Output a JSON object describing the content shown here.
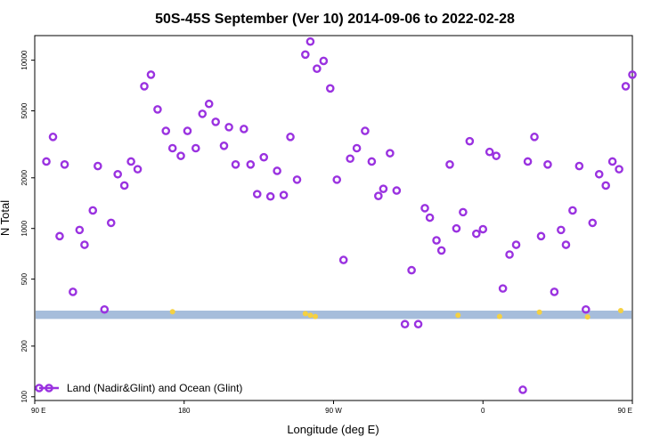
{
  "chart_data": {
    "type": "scatter",
    "title": "50S-45S September (Ver 10)   2014-09-06 to 2022-02-28",
    "xlabel": "Longitude (deg E)",
    "ylabel": "N Total",
    "y_scale": "log",
    "xlim": [
      90,
      450
    ],
    "ylim": [
      95,
      14000
    ],
    "x_ticks": [
      {
        "value": 90,
        "label": "90 E"
      },
      {
        "value": 180,
        "label": "180"
      },
      {
        "value": 270,
        "label": "90 W"
      },
      {
        "value": 360,
        "label": "0"
      },
      {
        "value": 450,
        "label": "90 E"
      },
      {
        "value": 540,
        "label": "180"
      }
    ],
    "y_ticks": [
      {
        "value": 100,
        "label": "100"
      },
      {
        "value": 200,
        "label": "200"
      },
      {
        "value": 500,
        "label": "500"
      },
      {
        "value": 1000,
        "label": "1000"
      },
      {
        "value": 2000,
        "label": "2000"
      },
      {
        "value": 5000,
        "label": "5000"
      },
      {
        "value": 10000,
        "label": "10000"
      }
    ],
    "legend": {
      "position": "bottom-left"
    },
    "series": [
      {
        "name": "Land (Nadir&Glint) and Ocean (Glint)",
        "color": "#9a32e0",
        "points": [
          [
            97,
            2500
          ],
          [
            101,
            3500
          ],
          [
            105,
            900
          ],
          [
            108,
            2400
          ],
          [
            113,
            420
          ],
          [
            117,
            980
          ],
          [
            120,
            800
          ],
          [
            125,
            1280
          ],
          [
            128,
            2350
          ],
          [
            132,
            330
          ],
          [
            136,
            1080
          ],
          [
            140,
            2100
          ],
          [
            144,
            1800
          ],
          [
            148,
            2500
          ],
          [
            152,
            2250
          ],
          [
            156,
            7000
          ],
          [
            160,
            8200
          ],
          [
            164,
            5100
          ],
          [
            169,
            3800
          ],
          [
            173,
            3000
          ],
          [
            178,
            2700
          ],
          [
            182,
            3800
          ],
          [
            187,
            3000
          ],
          [
            191,
            4800
          ],
          [
            195,
            5500
          ],
          [
            199,
            4300
          ],
          [
            204,
            3100
          ],
          [
            207,
            4000
          ],
          [
            211,
            2400
          ],
          [
            216,
            3900
          ],
          [
            220,
            2400
          ],
          [
            224,
            1600
          ],
          [
            228,
            2650
          ],
          [
            232,
            1550
          ],
          [
            236,
            2200
          ],
          [
            240,
            1580
          ],
          [
            244,
            3500
          ],
          [
            248,
            1950
          ],
          [
            253,
            10800
          ],
          [
            256,
            12900
          ],
          [
            260,
            8900
          ],
          [
            264,
            9900
          ],
          [
            268,
            6800
          ],
          [
            272,
            1950
          ],
          [
            276,
            650
          ],
          [
            280,
            2600
          ],
          [
            284,
            3000
          ],
          [
            289,
            3800
          ],
          [
            293,
            2500
          ],
          [
            297,
            1560
          ],
          [
            300,
            1720
          ],
          [
            304,
            2800
          ],
          [
            308,
            1680
          ],
          [
            313,
            270
          ],
          [
            317,
            565
          ],
          [
            321,
            270
          ],
          [
            325,
            1320
          ],
          [
            328,
            1160
          ],
          [
            332,
            850
          ],
          [
            335,
            740
          ],
          [
            340,
            2400
          ],
          [
            344,
            1000
          ],
          [
            348,
            1250
          ],
          [
            352,
            3300
          ],
          [
            356,
            930
          ],
          [
            360,
            990
          ],
          [
            364,
            2850
          ],
          [
            368,
            2700
          ],
          [
            372,
            440
          ],
          [
            376,
            700
          ],
          [
            380,
            800
          ],
          [
            384,
            110
          ],
          [
            387,
            2500
          ],
          [
            391,
            3500
          ],
          [
            395,
            900
          ],
          [
            399,
            2400
          ],
          [
            403,
            420
          ],
          [
            407,
            980
          ],
          [
            410,
            800
          ],
          [
            414,
            1280
          ],
          [
            418,
            2350
          ],
          [
            422,
            330
          ],
          [
            426,
            1080
          ],
          [
            430,
            2100
          ],
          [
            434,
            1800
          ],
          [
            438,
            2500
          ],
          [
            442,
            2250
          ],
          [
            446,
            7000
          ],
          [
            450,
            8200
          ]
        ]
      }
    ],
    "band": {
      "color": "#a6bddb",
      "y_low": 290,
      "y_high": 325
    },
    "highlights": {
      "color": "#f5d142",
      "points": [
        [
          173,
          320
        ],
        [
          256,
          305
        ],
        [
          259,
          300
        ],
        [
          253,
          312
        ],
        [
          345,
          305
        ],
        [
          370,
          300
        ],
        [
          394,
          318
        ],
        [
          423,
          298
        ],
        [
          443,
          325
        ]
      ]
    }
  }
}
